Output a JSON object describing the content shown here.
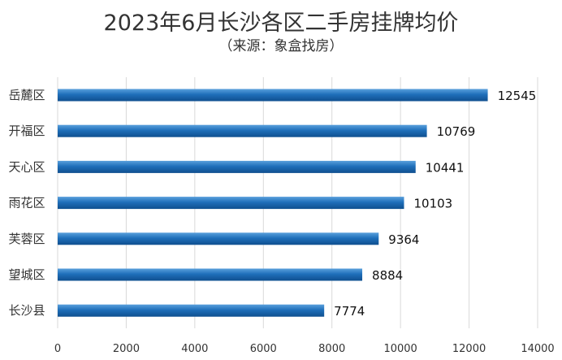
{
  "chart_data": {
    "type": "bar",
    "orientation": "horizontal",
    "title": "2023年6月长沙各区二手房挂牌均价",
    "subtitle": "（来源：象盒找房）",
    "categories": [
      "岳麓区",
      "开福区",
      "天心区",
      "雨花区",
      "芙蓉区",
      "望城区",
      "长沙县"
    ],
    "values": [
      12545,
      10769,
      10441,
      10103,
      9364,
      8884,
      7774
    ],
    "xlim": [
      0,
      14000
    ],
    "xticks": [
      0,
      2000,
      4000,
      6000,
      8000,
      10000,
      12000,
      14000
    ],
    "grid": true,
    "legend": "none",
    "bar_color": "#1f6fba"
  }
}
